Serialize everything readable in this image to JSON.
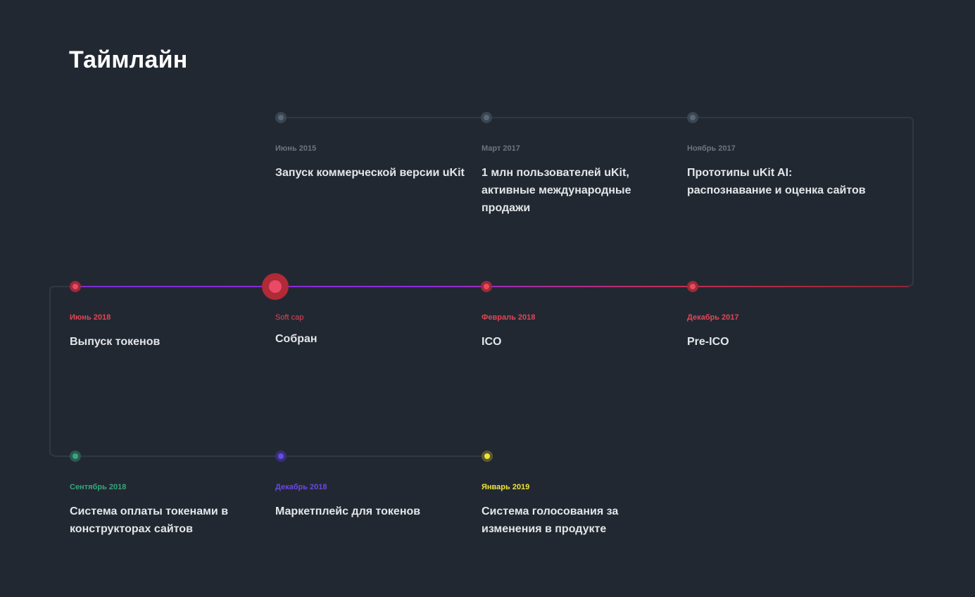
{
  "title": "Таймлайн",
  "colors": {
    "background": "#222831",
    "track": "#2f3844",
    "past": "#485462",
    "current": "#e0384f",
    "gradient_start": "#6f2fd6",
    "gradient_end": "#c42e44",
    "green": "#37a57d",
    "purple": "#6a48e4",
    "yellow": "#eee43a"
  },
  "rows": [
    {
      "events": [
        {
          "date": "Июнь 2015",
          "text": "Запуск коммерческой версии uKit",
          "status": "past"
        },
        {
          "date": "Март 2017",
          "text": "1 млн пользователей uKit, активные международные продажи",
          "status": "past"
        },
        {
          "date": "Ноябрь 2017",
          "text": "Прототипы uKit AI: распознавание и оценка сайтов",
          "status": "past"
        }
      ]
    },
    {
      "events": [
        {
          "date": "Июнь 2018",
          "text": "Выпуск токенов",
          "status": "current"
        },
        {
          "date": "Soft cap",
          "text": "Собран",
          "status": "highlight"
        },
        {
          "date": "Февраль 2018",
          "text": "ICO",
          "status": "current"
        },
        {
          "date": "Декабрь 2017",
          "text": "Pre-ICO",
          "status": "current"
        }
      ]
    },
    {
      "events": [
        {
          "date": "Сентябрь 2018",
          "text": "Система оплаты токенами в конструкторах сайтов",
          "status": "future-green"
        },
        {
          "date": "Декабрь 2018",
          "text": "Маркетплейс для токенов",
          "status": "future-purple"
        },
        {
          "date": "Январь 2019",
          "text": "Система голосования за изменения в продукте",
          "status": "future-yellow"
        }
      ]
    }
  ]
}
